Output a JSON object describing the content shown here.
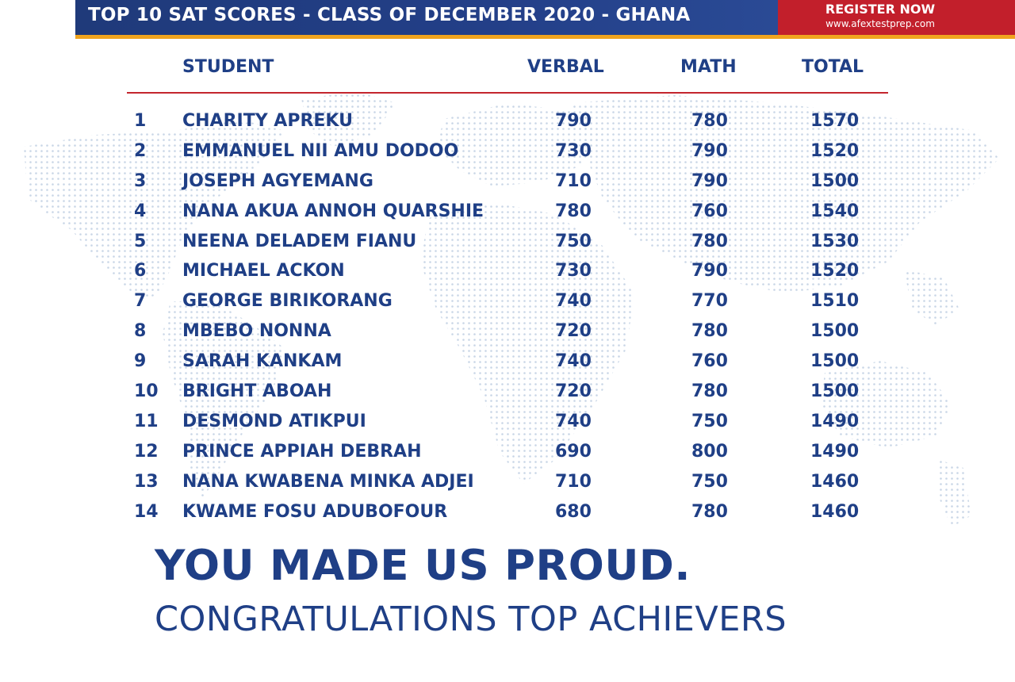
{
  "banner": {
    "title": "TOP 10 SAT SCORES - CLASS OF DECEMBER 2020 - GHANA",
    "cta_label": "REGISTER NOW",
    "cta_url": "www.afextestprep.com"
  },
  "table": {
    "headers": {
      "student": "STUDENT",
      "verbal": "VERBAL",
      "math": "MATH",
      "total": "TOTAL"
    },
    "rows": [
      {
        "rank": "1",
        "name": "CHARITY APREKU",
        "verbal": "790",
        "math": "780",
        "total": "1570"
      },
      {
        "rank": "2",
        "name": "EMMANUEL NII AMU DODOO",
        "verbal": "730",
        "math": "790",
        "total": "1520"
      },
      {
        "rank": "3",
        "name": "JOSEPH AGYEMANG",
        "verbal": "710",
        "math": "790",
        "total": "1500"
      },
      {
        "rank": "4",
        "name": "NANA AKUA ANNOH QUARSHIE",
        "verbal": "780",
        "math": "760",
        "total": "1540"
      },
      {
        "rank": "5",
        "name": "NEENA DELADEM FIANU",
        "verbal": "750",
        "math": "780",
        "total": "1530"
      },
      {
        "rank": "6",
        "name": "MICHAEL ACKON",
        "verbal": "730",
        "math": "790",
        "total": "1520"
      },
      {
        "rank": "7",
        "name": "GEORGE BIRIKORANG",
        "verbal": "740",
        "math": "770",
        "total": "1510"
      },
      {
        "rank": "8",
        "name": "MBEBO NONNA",
        "verbal": "720",
        "math": "780",
        "total": "1500"
      },
      {
        "rank": "9",
        "name": "SARAH KANKAM",
        "verbal": "740",
        "math": "760",
        "total": "1500"
      },
      {
        "rank": "10",
        "name": "BRIGHT ABOAH",
        "verbal": "720",
        "math": "780",
        "total": "1500"
      },
      {
        "rank": "11",
        "name": "DESMOND ATIKPUI",
        "verbal": "740",
        "math": "750",
        "total": "1490"
      },
      {
        "rank": "12",
        "name": "PRINCE APPIAH DEBRAH",
        "verbal": "690",
        "math": "800",
        "total": "1490"
      },
      {
        "rank": "13",
        "name": "NANA KWABENA MINKA ADJEI",
        "verbal": "710",
        "math": "750",
        "total": "1460"
      },
      {
        "rank": "14",
        "name": "KWAME FOSU ADUBOFOUR",
        "verbal": "680",
        "math": "780",
        "total": "1460"
      }
    ]
  },
  "footer": {
    "headline": "YOU MADE US PROUD.",
    "subline": "CONGRATULATIONS TOP ACHIEVERS"
  },
  "colors": {
    "primary_blue": "#1f3f86",
    "accent_red": "#c21f2b",
    "accent_gold": "#f0a41e",
    "map_dots": "#c9d6e6"
  }
}
